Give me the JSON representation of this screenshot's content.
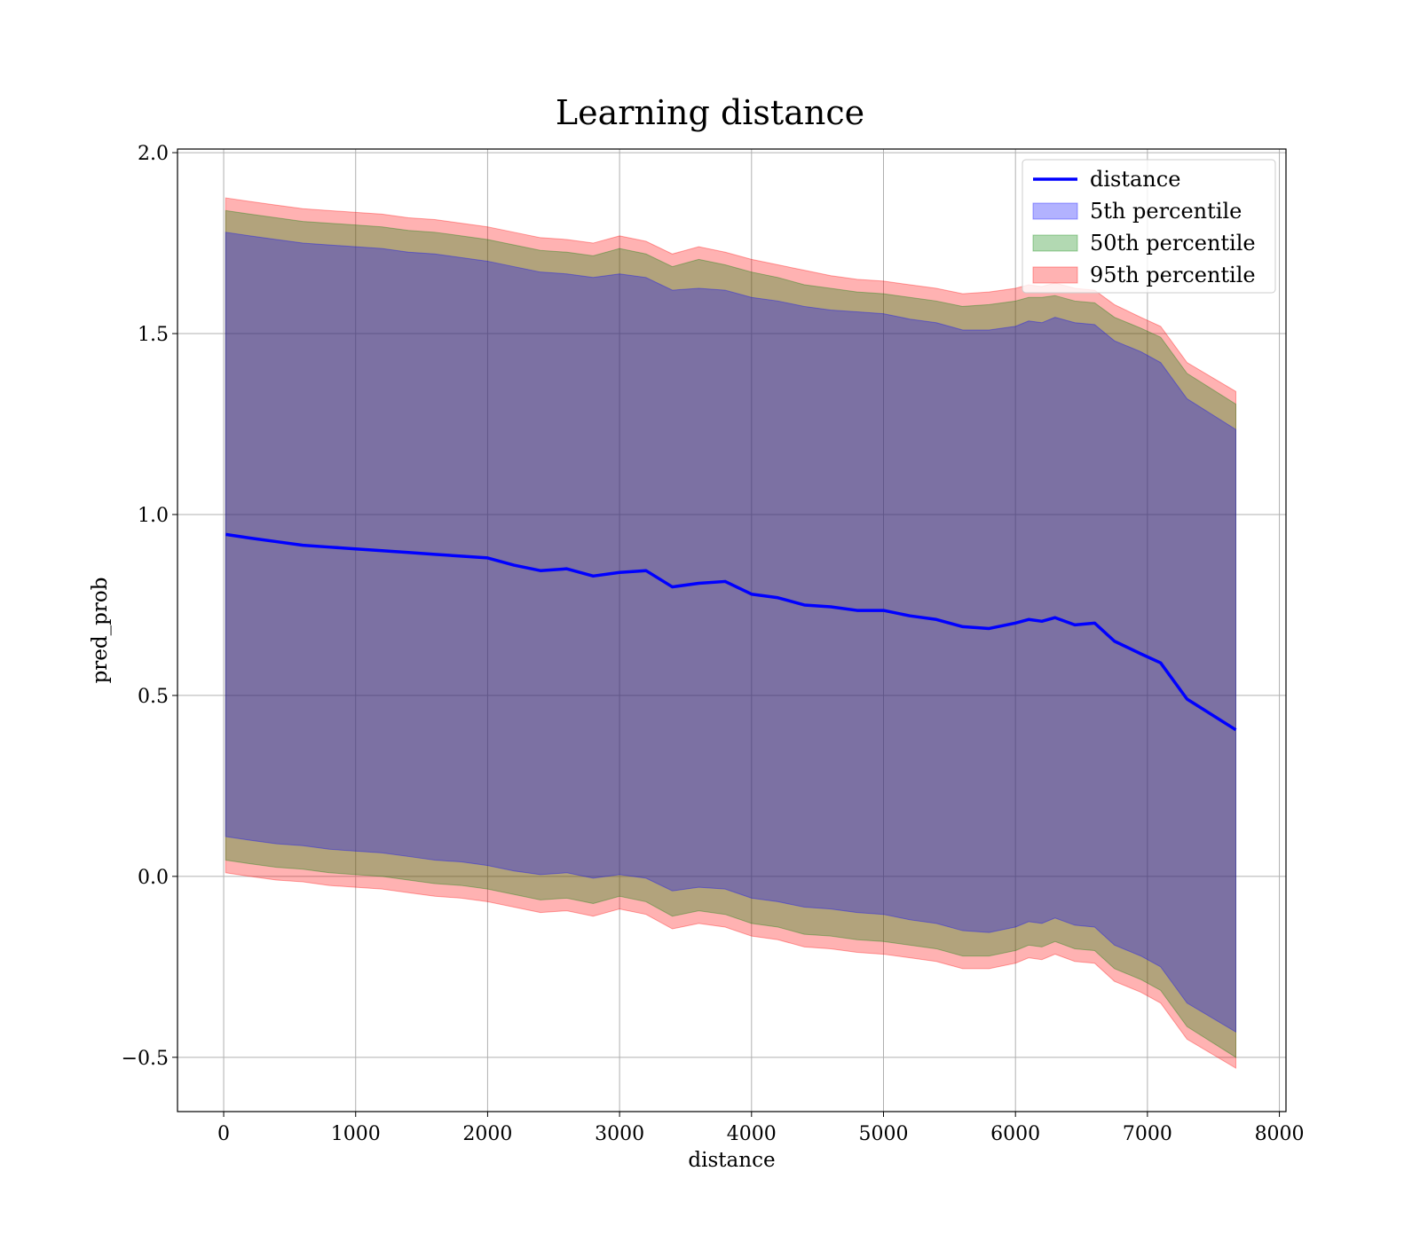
{
  "chart_data": {
    "type": "line",
    "title": "Learning distance",
    "xlabel": "distance",
    "ylabel": "pred_prob",
    "xlim": [
      -350,
      8050
    ],
    "ylim": [
      -0.65,
      2.01
    ],
    "xticks": [
      0,
      1000,
      2000,
      3000,
      4000,
      5000,
      6000,
      7000,
      8000
    ],
    "xtick_labels": [
      "0",
      "1000",
      "2000",
      "3000",
      "4000",
      "5000",
      "6000",
      "7000",
      "8000"
    ],
    "yticks": [
      -0.5,
      0.0,
      0.5,
      1.0,
      1.5,
      2.0
    ],
    "ytick_labels": [
      "−0.5",
      "0.0",
      "0.5",
      "1.0",
      "1.5",
      "2.0"
    ],
    "grid": true,
    "legend_position": "top-right",
    "legend": [
      {
        "label": "distance",
        "kind": "line",
        "color": "#0000ff"
      },
      {
        "label": "5th percentile",
        "kind": "patch",
        "color": "#0000ff"
      },
      {
        "label": "50th percentile",
        "kind": "patch",
        "color": "#008000"
      },
      {
        "label": "95th percentile",
        "kind": "patch",
        "color": "#ff0000"
      }
    ],
    "x": [
      15,
      200,
      400,
      600,
      800,
      1000,
      1200,
      1400,
      1600,
      1800,
      2000,
      2200,
      2400,
      2600,
      2800,
      3000,
      3200,
      3400,
      3600,
      3800,
      4000,
      4200,
      4400,
      4600,
      4800,
      5000,
      5200,
      5400,
      5600,
      5800,
      6000,
      6100,
      6200,
      6300,
      6450,
      6600,
      6750,
      6950,
      7100,
      7300,
      7670
    ],
    "series": [
      {
        "name": "distance",
        "kind": "line",
        "color": "#0000ff",
        "values": [
          0.945,
          0.935,
          0.925,
          0.915,
          0.91,
          0.905,
          0.9,
          0.895,
          0.89,
          0.885,
          0.88,
          0.86,
          0.845,
          0.85,
          0.83,
          0.84,
          0.845,
          0.8,
          0.81,
          0.815,
          0.78,
          0.77,
          0.75,
          0.745,
          0.735,
          0.735,
          0.72,
          0.71,
          0.69,
          0.685,
          0.7,
          0.71,
          0.705,
          0.715,
          0.695,
          0.7,
          0.65,
          0.615,
          0.59,
          0.49,
          0.405
        ]
      },
      {
        "name": "5th percentile",
        "kind": "band",
        "color": "#0000ff",
        "upper": [
          1.78,
          1.77,
          1.76,
          1.75,
          1.745,
          1.74,
          1.735,
          1.725,
          1.72,
          1.71,
          1.7,
          1.685,
          1.67,
          1.665,
          1.655,
          1.665,
          1.655,
          1.62,
          1.625,
          1.62,
          1.6,
          1.59,
          1.575,
          1.565,
          1.56,
          1.555,
          1.54,
          1.53,
          1.51,
          1.51,
          1.52,
          1.535,
          1.53,
          1.545,
          1.53,
          1.525,
          1.48,
          1.45,
          1.42,
          1.32,
          1.235
        ],
        "lower": [
          0.11,
          0.1,
          0.09,
          0.085,
          0.075,
          0.07,
          0.065,
          0.055,
          0.045,
          0.04,
          0.03,
          0.015,
          0.005,
          0.01,
          -0.005,
          0.005,
          -0.005,
          -0.04,
          -0.03,
          -0.035,
          -0.06,
          -0.07,
          -0.085,
          -0.09,
          -0.1,
          -0.105,
          -0.12,
          -0.13,
          -0.15,
          -0.155,
          -0.14,
          -0.125,
          -0.13,
          -0.115,
          -0.135,
          -0.14,
          -0.19,
          -0.22,
          -0.25,
          -0.35,
          -0.43
        ]
      },
      {
        "name": "50th percentile",
        "kind": "band",
        "color": "#008000",
        "upper": [
          1.84,
          1.83,
          1.82,
          1.81,
          1.805,
          1.8,
          1.795,
          1.785,
          1.78,
          1.77,
          1.76,
          1.745,
          1.73,
          1.725,
          1.715,
          1.735,
          1.72,
          1.685,
          1.705,
          1.69,
          1.67,
          1.655,
          1.635,
          1.625,
          1.615,
          1.61,
          1.6,
          1.59,
          1.575,
          1.58,
          1.59,
          1.6,
          1.6,
          1.605,
          1.59,
          1.585,
          1.545,
          1.515,
          1.49,
          1.39,
          1.305
        ],
        "lower": [
          0.045,
          0.035,
          0.025,
          0.02,
          0.01,
          0.005,
          0.0,
          -0.01,
          -0.02,
          -0.025,
          -0.035,
          -0.05,
          -0.065,
          -0.06,
          -0.075,
          -0.055,
          -0.07,
          -0.11,
          -0.095,
          -0.105,
          -0.13,
          -0.14,
          -0.16,
          -0.165,
          -0.175,
          -0.18,
          -0.19,
          -0.2,
          -0.22,
          -0.22,
          -0.205,
          -0.19,
          -0.195,
          -0.18,
          -0.2,
          -0.205,
          -0.255,
          -0.285,
          -0.315,
          -0.415,
          -0.5
        ]
      },
      {
        "name": "95th percentile",
        "kind": "band",
        "color": "#ff0000",
        "upper": [
          1.875,
          1.865,
          1.855,
          1.845,
          1.84,
          1.835,
          1.83,
          1.82,
          1.815,
          1.805,
          1.795,
          1.78,
          1.765,
          1.76,
          1.75,
          1.77,
          1.755,
          1.72,
          1.74,
          1.725,
          1.705,
          1.69,
          1.675,
          1.66,
          1.65,
          1.645,
          1.635,
          1.625,
          1.61,
          1.615,
          1.625,
          1.635,
          1.63,
          1.64,
          1.625,
          1.62,
          1.58,
          1.545,
          1.52,
          1.42,
          1.34
        ],
        "lower": [
          0.01,
          0.0,
          -0.01,
          -0.015,
          -0.025,
          -0.03,
          -0.035,
          -0.045,
          -0.055,
          -0.06,
          -0.07,
          -0.085,
          -0.1,
          -0.095,
          -0.11,
          -0.09,
          -0.105,
          -0.145,
          -0.13,
          -0.14,
          -0.165,
          -0.175,
          -0.195,
          -0.2,
          -0.21,
          -0.215,
          -0.225,
          -0.235,
          -0.255,
          -0.255,
          -0.24,
          -0.225,
          -0.23,
          -0.215,
          -0.235,
          -0.24,
          -0.29,
          -0.32,
          -0.35,
          -0.45,
          -0.53
        ]
      }
    ]
  }
}
